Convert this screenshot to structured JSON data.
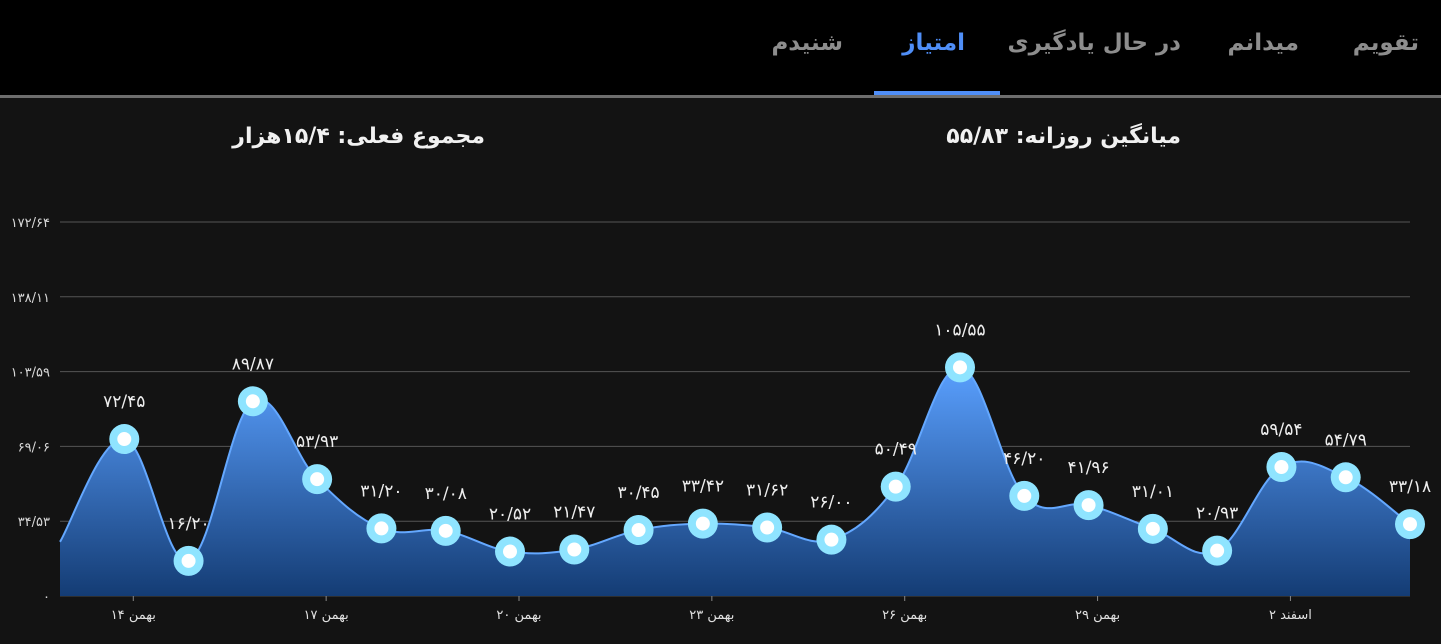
{
  "tabs": [
    {
      "label": "تقویم",
      "active": false
    },
    {
      "label": "میدانم",
      "active": false
    },
    {
      "label": "در حال یادگیری",
      "active": false
    },
    {
      "label": "امتیاز",
      "active": true
    },
    {
      "label": "شنیدم",
      "active": false
    }
  ],
  "stats": {
    "daily_average": "میانگین روزانه: ۵۵/۸۳",
    "total": "مجموع فعلی: ۱۵/۴هزار"
  },
  "colors": {
    "accent": "#4f8ef7",
    "area_top": "#4a90f0",
    "area_bottom": "#163e78",
    "point_fill": "#ffffff",
    "point_ring": "#8fe4ff"
  },
  "chart_data": {
    "type": "area",
    "ylim": [
      0,
      172.64
    ],
    "y_ticks": [
      {
        "value": 0,
        "label": "۰"
      },
      {
        "value": 34.53,
        "label": "۳۴/۵۳"
      },
      {
        "value": 69.06,
        "label": "۶۹/۰۶"
      },
      {
        "value": 103.59,
        "label": "۱۰۳/۵۹"
      },
      {
        "value": 138.11,
        "label": "۱۳۸/۱۱"
      },
      {
        "value": 172.64,
        "label": "۱۷۲/۶۴"
      }
    ],
    "x_tick_labels": [
      {
        "index": 1,
        "label": "۱۴ بهمن"
      },
      {
        "index": 4,
        "label": "۱۷ بهمن"
      },
      {
        "index": 7,
        "label": "۲۰ بهمن"
      },
      {
        "index": 10,
        "label": "۲۳ بهمن"
      },
      {
        "index": 13,
        "label": "۲۶ بهمن"
      },
      {
        "index": 16,
        "label": "۲۹ بهمن"
      },
      {
        "index": 19,
        "label": "۲ اسفند"
      }
    ],
    "values": [
      25.0,
      72.45,
      16.2,
      89.87,
      53.93,
      31.2,
      30.08,
      20.52,
      21.47,
      30.45,
      33.42,
      31.62,
      26.0,
      50.49,
      105.55,
      46.2,
      41.96,
      31.01,
      20.93,
      59.54,
      54.79,
      33.18
    ],
    "value_labels": [
      "",
      "۷۲/۴۵",
      "۱۶/۲۰",
      "۸۹/۸۷",
      "۵۳/۹۳",
      "۳۱/۲۰",
      "۳۰/۰۸",
      "۲۰/۵۲",
      "۲۱/۴۷",
      "۳۰/۴۵",
      "۳۳/۴۲",
      "۳۱/۶۲",
      "۲۶/۰۰",
      "۵۰/۴۹",
      "۱۰۵/۵۵",
      "۴۶/۲۰",
      "۴۱/۹۶",
      "۳۱/۰۱",
      "۲۰/۹۳",
      "۵۹/۵۴",
      "۵۴/۷۹",
      "۳۳/۱۸"
    ],
    "grid": true,
    "legend": "none"
  }
}
